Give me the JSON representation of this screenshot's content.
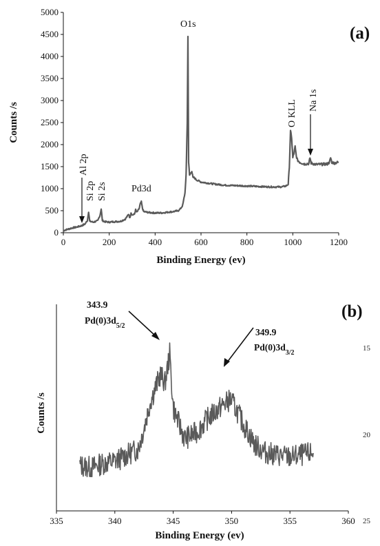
{
  "chart_data": [
    {
      "panel": "(a)",
      "type": "line",
      "xlabel": "Binding Energy (ev)",
      "ylabel": "Counts /s",
      "xlim": [
        0,
        1200
      ],
      "ylim": [
        0,
        5000
      ],
      "x_ticks": [
        0,
        200,
        400,
        600,
        800,
        1000,
        1200
      ],
      "y_ticks": [
        0,
        500,
        1000,
        1500,
        2000,
        2500,
        3000,
        3500,
        4000,
        4500,
        5000
      ],
      "grid": false,
      "color": "#5a5a5a",
      "series": [
        {
          "x": [
            0,
            20,
            40,
            60,
            80,
            95,
            105,
            110,
            115,
            130,
            150,
            160,
            165,
            170,
            180,
            200,
            220,
            250,
            270,
            285,
            290,
            295,
            300,
            310,
            315,
            320,
            330,
            335,
            340,
            345,
            350,
            370,
            400,
            430,
            460,
            480,
            500,
            510,
            520,
            530,
            535,
            540,
            543,
            546,
            550,
            555,
            560,
            565,
            570,
            580,
            600,
            650,
            700,
            750,
            800,
            850,
            900,
            950,
            970,
            980,
            985,
            990,
            995,
            1000,
            1005,
            1010,
            1015,
            1020,
            1030,
            1050,
            1070,
            1075,
            1080,
            1100,
            1120,
            1150,
            1160,
            1165,
            1170,
            1180,
            1200
          ],
          "y": [
            50,
            80,
            110,
            130,
            160,
            200,
            280,
            480,
            260,
            240,
            270,
            400,
            540,
            280,
            250,
            240,
            250,
            260,
            310,
            420,
            330,
            460,
            400,
            420,
            520,
            460,
            540,
            650,
            700,
            550,
            480,
            460,
            450,
            450,
            470,
            480,
            500,
            540,
            620,
            900,
            1300,
            2500,
            4450,
            1600,
            1300,
            1350,
            1400,
            1250,
            1250,
            1200,
            1150,
            1110,
            1080,
            1070,
            1060,
            1050,
            1040,
            1040,
            1060,
            1100,
            1500,
            2300,
            2150,
            1700,
            1800,
            1950,
            1750,
            1650,
            1600,
            1560,
            1570,
            1700,
            1580,
            1550,
            1550,
            1560,
            1600,
            1700,
            1600,
            1580,
            1600
          ]
        }
      ],
      "annotations": [
        {
          "text": "O1s",
          "x": 543,
          "y": 4700
        },
        {
          "text": "O KLL",
          "x": 990,
          "y": 2350
        },
        {
          "text": "Na 1s",
          "x": 1075,
          "y": 1750
        },
        {
          "text": "Pd3d",
          "x": 340,
          "y": 900
        },
        {
          "text": "Al 2p",
          "x": 80,
          "y": 400
        },
        {
          "text": "Si 2p",
          "x": 110,
          "y": 550
        },
        {
          "text": "Si 2s",
          "x": 160,
          "y": 600
        }
      ]
    },
    {
      "panel": "(b)",
      "type": "line",
      "xlabel": "Binding Energy (ev)",
      "ylabel": "Counts /s",
      "xlim": [
        335,
        360
      ],
      "x_ticks": [
        335,
        340,
        345,
        350,
        355,
        360
      ],
      "y_tick_labels": false,
      "grid": false,
      "color": "#5a5a5a",
      "series": [
        {
          "x": [
            337,
            338,
            339,
            340,
            341,
            342,
            342.5,
            343,
            343.5,
            343.9,
            344.3,
            344.7,
            345,
            345.5,
            346,
            347,
            348,
            349,
            349.9,
            350.5,
            351,
            352,
            353,
            354,
            355,
            356,
            357
          ],
          "y": [
            0.22,
            0.21,
            0.23,
            0.24,
            0.27,
            0.3,
            0.4,
            0.52,
            0.6,
            0.66,
            0.62,
            0.76,
            0.5,
            0.42,
            0.35,
            0.38,
            0.45,
            0.5,
            0.54,
            0.48,
            0.42,
            0.32,
            0.28,
            0.27,
            0.26,
            0.27,
            0.28
          ]
        }
      ],
      "annotations": [
        {
          "value": "343.9",
          "label": "Pd(0)3d",
          "sub": "5/2",
          "x": 343.9
        },
        {
          "value": "349.9",
          "label": "Pd(0)3d",
          "sub": "3/2",
          "x": 349.9
        }
      ]
    }
  ],
  "panels": {
    "a": {
      "tag": "(a)"
    },
    "b": {
      "tag": "(b)"
    }
  },
  "margin_numbers": [
    "15",
    "20",
    "25"
  ]
}
